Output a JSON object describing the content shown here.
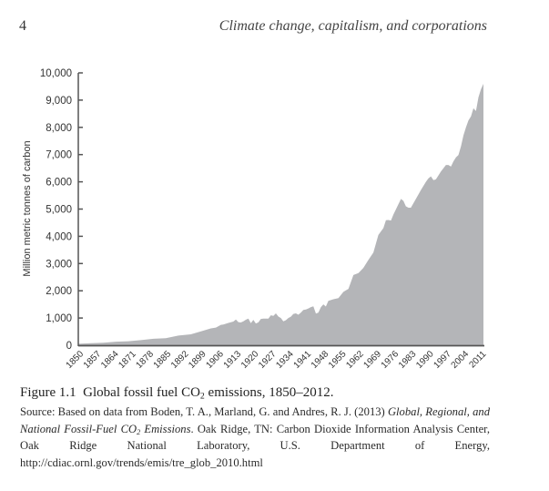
{
  "page": {
    "number": "4",
    "running_head": "Climate change, capitalism, and corporations"
  },
  "caption": {
    "label": "Figure 1.1",
    "text_before_sub": "Global fossil fuel CO",
    "subscript": "2",
    "text_after_sub": " emissions, 1850–2012."
  },
  "source": {
    "part1": "Source: Based on data from Boden, T. A., Marland, G. and Andres, R. J. (2013) ",
    "italic1": "Global, Regional, and National Fossil-Fuel CO",
    "italic_sub": "2",
    "italic2": " Emissions",
    "part2": ". Oak Ridge, TN: Carbon Dioxide Information Analysis Center, Oak Ridge National Laboratory, U.S. Department of Energy, http://cdiac.ornl.gov/trends/emis/tre_glob_2010.html"
  },
  "colors": {
    "area_fill": "#b4b5b8",
    "axis": "#555555"
  },
  "chart_data": {
    "type": "area",
    "title": "Global fossil fuel CO2 emissions, 1850–2012",
    "xlabel": "",
    "ylabel": "Million metric tonnes of carbon",
    "xlim": [
      1850,
      2012
    ],
    "ylim": [
      0,
      10000
    ],
    "yticks": [
      "0",
      "1,000",
      "2,000",
      "3,000",
      "4,000",
      "5,000",
      "6,000",
      "7,000",
      "8,000",
      "9,000",
      "10,000"
    ],
    "ytick_values": [
      0,
      1000,
      2000,
      3000,
      4000,
      5000,
      6000,
      7000,
      8000,
      9000,
      10000
    ],
    "xticks": [
      "1850",
      "1857",
      "1864",
      "1871",
      "1878",
      "1885",
      "1892",
      "1899",
      "1906",
      "1913",
      "1920",
      "1927",
      "1934",
      "1941",
      "1948",
      "1955",
      "1962",
      "1969",
      "1976",
      "1983",
      "1990",
      "1997",
      "2004",
      "2011"
    ],
    "xtick_values": [
      1850,
      1857,
      1864,
      1871,
      1878,
      1885,
      1892,
      1899,
      1906,
      1913,
      1920,
      1927,
      1934,
      1941,
      1948,
      1955,
      1962,
      1969,
      1976,
      1983,
      1990,
      1997,
      2004,
      2011
    ],
    "grid": false,
    "legend": "none",
    "series": [
      {
        "name": "Global fossil fuel CO2 emissions",
        "x": [
          1850,
          1855,
          1860,
          1865,
          1870,
          1875,
          1880,
          1885,
          1890,
          1895,
          1900,
          1903,
          1905,
          1907,
          1908,
          1910,
          1912,
          1913,
          1914,
          1915,
          1916,
          1917,
          1918,
          1919,
          1920,
          1921,
          1922,
          1923,
          1924,
          1925,
          1926,
          1927,
          1928,
          1929,
          1930,
          1931,
          1932,
          1933,
          1934,
          1935,
          1936,
          1937,
          1938,
          1939,
          1940,
          1941,
          1942,
          1943,
          1944,
          1945,
          1946,
          1947,
          1948,
          1949,
          1950,
          1952,
          1954,
          1956,
          1958,
          1960,
          1962,
          1964,
          1966,
          1968,
          1970,
          1972,
          1973,
          1974,
          1975,
          1976,
          1977,
          1979,
          1980,
          1981,
          1982,
          1983,
          1985,
          1987,
          1989,
          1990,
          1991,
          1992,
          1993,
          1995,
          1997,
          1998,
          1999,
          2000,
          2001,
          2002,
          2003,
          2004,
          2005,
          2006,
          2007,
          2008,
          2009,
          2010,
          2011,
          2012
        ],
        "values": [
          54,
          72,
          93,
          130,
          147,
          188,
          236,
          260,
          356,
          400,
          534,
          620,
          650,
          750,
          760,
          819,
          870,
          943,
          850,
          836,
          880,
          935,
          980,
          810,
          932,
          800,
          840,
          966,
          975,
          981,
          980,
          1100,
          1080,
          1171,
          1053,
          1000,
          880,
          920,
          1000,
          1050,
          1150,
          1170,
          1120,
          1200,
          1299,
          1310,
          1350,
          1400,
          1430,
          1160,
          1200,
          1400,
          1500,
          1420,
          1630,
          1690,
          1730,
          1960,
          2070,
          2577,
          2650,
          2840,
          3130,
          3400,
          4050,
          4300,
          4590,
          4600,
          4580,
          4800,
          4990,
          5370,
          5300,
          5100,
          5050,
          5050,
          5370,
          5700,
          6000,
          6130,
          6200,
          6060,
          6090,
          6380,
          6620,
          6620,
          6560,
          6750,
          6900,
          6980,
          7300,
          7700,
          8000,
          8250,
          8400,
          8700,
          8600,
          9100,
          9400,
          9600
        ]
      }
    ]
  }
}
